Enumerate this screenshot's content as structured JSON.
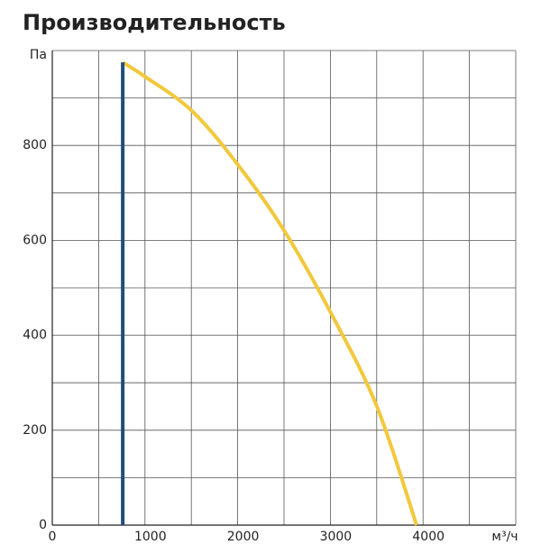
{
  "chart_data": {
    "type": "line",
    "title": "Производительность",
    "y_label": "Па",
    "x_label": "м³/ч",
    "xlim": [
      0,
      5000
    ],
    "ylim": [
      0,
      1000
    ],
    "xticks": [
      0,
      1000,
      2000,
      3000,
      4000
    ],
    "yticks": [
      0,
      200,
      400,
      600,
      800
    ],
    "xgrid": [
      500,
      1000,
      1500,
      2000,
      2500,
      3000,
      3500,
      4000,
      4500,
      5000
    ],
    "ygrid": [
      100,
      200,
      300,
      400,
      500,
      600,
      700,
      800,
      900,
      1000
    ],
    "series": [
      {
        "color": "#f2c83c",
        "x": [
          760,
          1000,
          1500,
          2000,
          2500,
          3000,
          3500,
          3930
        ],
        "values": [
          975,
          945,
          874,
          760,
          621,
          449,
          251,
          0
        ]
      },
      {
        "color": "#1f4e79",
        "x": [
          760,
          760
        ],
        "values": [
          0,
          975
        ]
      }
    ]
  }
}
